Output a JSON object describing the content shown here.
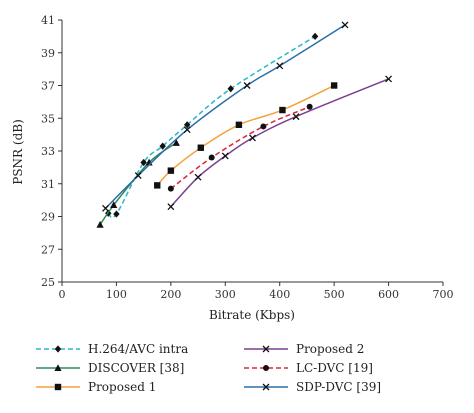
{
  "chart_data": {
    "type": "line",
    "title": "",
    "xlabel": "Bitrate (Kbps)",
    "ylabel": "PSNR (dB)",
    "xlim": [
      0,
      700
    ],
    "ylim": [
      25,
      41
    ],
    "xticks": [
      "0",
      "100",
      "200",
      "300",
      "400",
      "500",
      "600",
      "700"
    ],
    "yticks": [
      "25",
      "27",
      "29",
      "31",
      "33",
      "35",
      "37",
      "39",
      "41"
    ],
    "grid": false,
    "legend_position": "bottom",
    "series": [
      {
        "name": "H.264/AVC intra",
        "color": "#2ab7c9",
        "dash": "dashed",
        "marker": "diamond",
        "x": [
          85,
          100,
          150,
          185,
          230,
          310,
          465
        ],
        "y": [
          29.2,
          29.15,
          32.3,
          33.3,
          34.6,
          36.8,
          40.0
        ]
      },
      {
        "name": "DISCOVER [38]",
        "color": "#2e8b57",
        "dash": "solid",
        "marker": "triangle",
        "x": [
          70,
          95,
          160,
          210
        ],
        "y": [
          28.5,
          29.7,
          32.3,
          33.5
        ]
      },
      {
        "name": "Proposed 1",
        "color": "#f4a23c",
        "dash": "solid",
        "marker": "square",
        "x": [
          175,
          200,
          255,
          325,
          405,
          500
        ],
        "y": [
          30.9,
          31.8,
          33.2,
          34.6,
          35.5,
          37.0
        ]
      },
      {
        "name": "Proposed 2",
        "color": "#7b3f8f",
        "dash": "solid",
        "marker": "x",
        "x": [
          200,
          250,
          300,
          350,
          430,
          600
        ],
        "y": [
          29.6,
          31.4,
          32.7,
          33.8,
          35.1,
          37.4
        ]
      },
      {
        "name": "LC-DVC [19]",
        "color": "#d7263d",
        "dash": "dashed",
        "marker": "circle",
        "x": [
          200,
          275,
          370,
          455
        ],
        "y": [
          30.7,
          32.6,
          34.5,
          35.7
        ]
      },
      {
        "name": "SDP-DVC [39]",
        "color": "#2a6fa8",
        "dash": "solid",
        "marker": "x",
        "x": [
          80,
          140,
          230,
          340,
          400,
          520
        ],
        "y": [
          29.5,
          31.5,
          34.3,
          37.0,
          38.2,
          40.7
        ]
      }
    ]
  }
}
